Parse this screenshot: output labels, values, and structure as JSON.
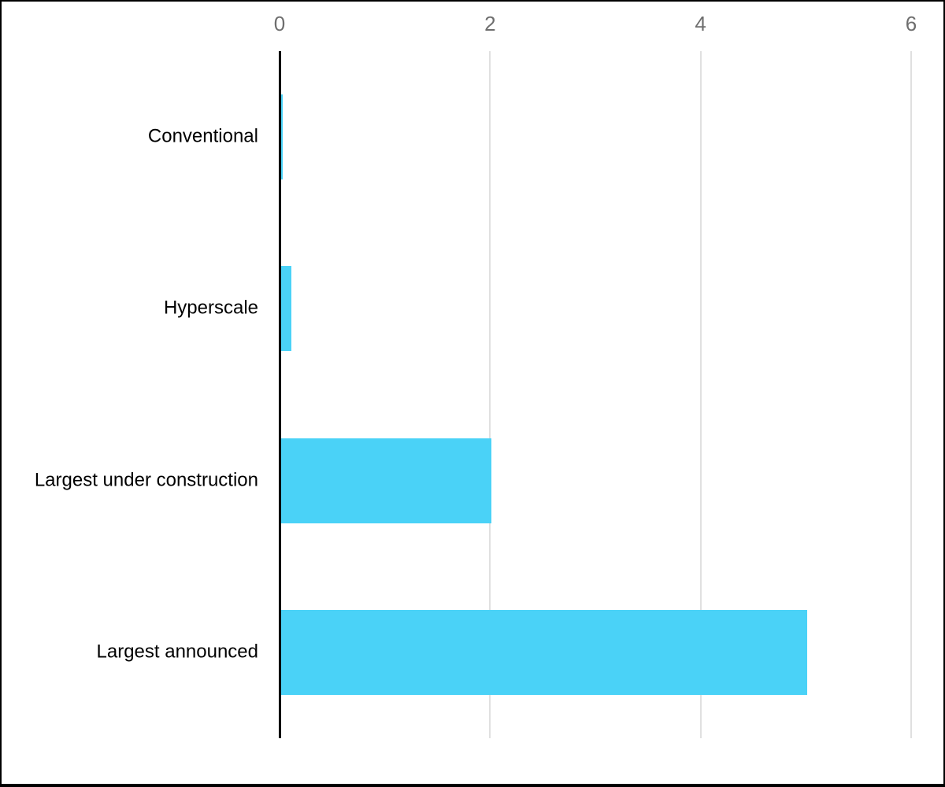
{
  "chart_data": {
    "type": "bar",
    "orientation": "horizontal",
    "title": "",
    "xlabel": "",
    "ylabel": "",
    "categories": [
      "Conventional",
      "Hyperscale",
      "Largest under construction",
      "Largest announced"
    ],
    "values": [
      0.02,
      0.1,
      2,
      5
    ],
    "xlim": [
      0,
      6
    ],
    "x_ticks": [
      0,
      2,
      4,
      6
    ],
    "x_tick_labels": [
      "0",
      "2",
      "4",
      "6"
    ],
    "axis_tick_position": "top",
    "grid": true,
    "legend": "none",
    "colors": {
      "bar": "#4AD2F7",
      "gridline": "#e0e0e0",
      "zero_axis": "#000000",
      "tick_label": "#6e6e6e",
      "category_label": "#000000",
      "background": "#ffffff",
      "frame_border": "#000000"
    }
  }
}
